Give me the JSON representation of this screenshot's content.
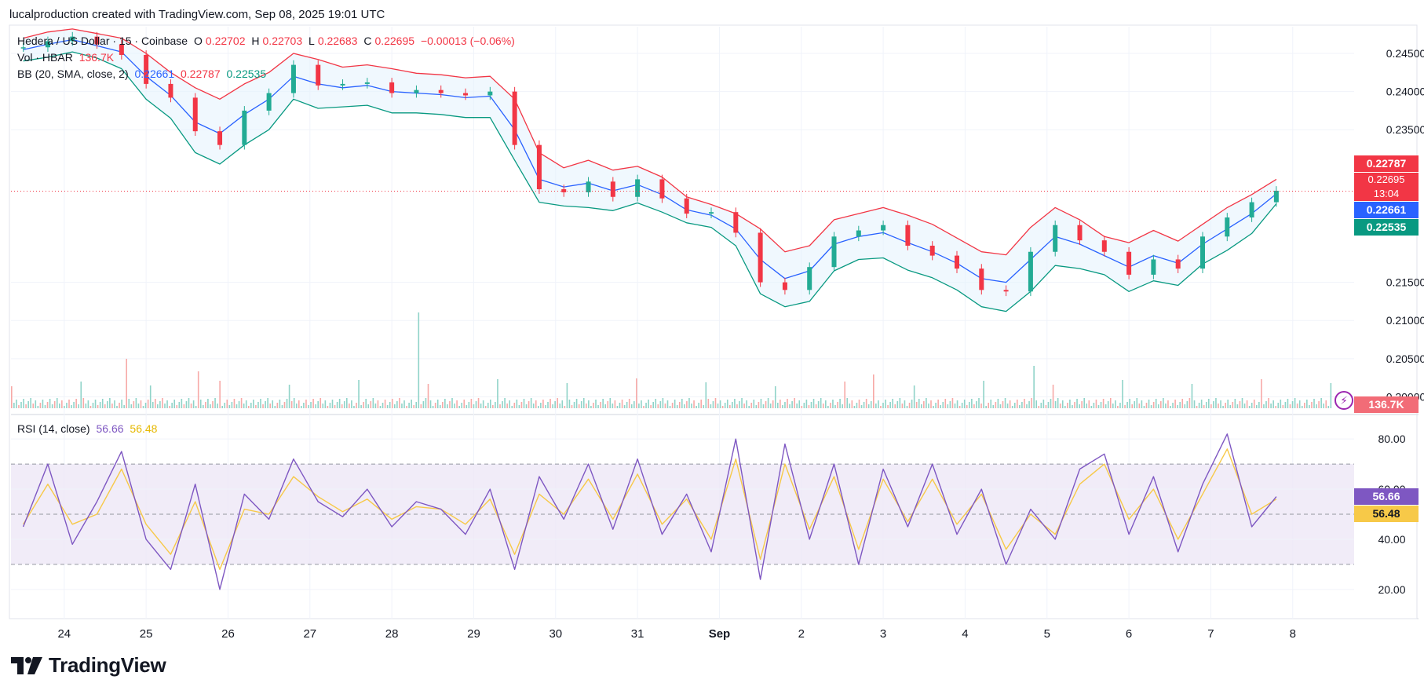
{
  "credit": "lucalproduction created with TradingView.com, Sep 08, 2025 19:01 UTC",
  "symbol": {
    "title": "Hedera / US Dollar · 15 · Coinbase",
    "open_label": "O",
    "open": "0.22702",
    "high_label": "H",
    "high": "0.22703",
    "low_label": "L",
    "low": "0.22683",
    "close_label": "C",
    "close": "0.22695",
    "change": "−0.00013 (−0.06%)"
  },
  "volume": {
    "label": "Vol · HBAR",
    "value": "136.7K"
  },
  "bb": {
    "label": "BB (20, SMA, close, 2)",
    "basis": "0.22661",
    "upper": "0.22787",
    "lower": "0.22535"
  },
  "rsi": {
    "label": "RSI (14, close)",
    "value": "56.66",
    "ma": "56.48"
  },
  "price_tags": {
    "upper": "0.22787",
    "close": "0.22695",
    "countdown": "13:04",
    "basis": "0.22661",
    "lower": "0.22535",
    "volume": "136.7K",
    "rsi": "56.66",
    "rsi_ma": "56.48"
  },
  "colors": {
    "up": "#22ab94",
    "down": "#f23645",
    "bb_upper": "#f23645",
    "bb_basis": "#2962ff",
    "bb_lower": "#089981",
    "rsi": "#7e57c2",
    "rsi_ma": "#f7c948",
    "rsi_band": "#ede7f6"
  },
  "logo_text": "TradingView",
  "chart_data": [
    {
      "type": "line",
      "title": "Hedera / US Dollar · 15 · Coinbase",
      "x_ticks": [
        "24",
        "25",
        "26",
        "27",
        "28",
        "29",
        "30",
        "31",
        "Sep",
        "2",
        "3",
        "4",
        "5",
        "6",
        "7",
        "8"
      ],
      "y_ticks": [
        "0.20000",
        "0.20500",
        "0.21000",
        "0.21500",
        "0.23500",
        "0.24000",
        "0.24500"
      ],
      "ylim": [
        0.1985,
        0.2485
      ],
      "grid": true,
      "series": [
        {
          "name": "BB upper",
          "x": [
            23.5,
            23.8,
            24.1,
            24.4,
            24.7,
            25.0,
            25.3,
            25.6,
            25.9,
            26.2,
            26.5,
            26.8,
            27.1,
            27.4,
            27.7,
            28.0,
            28.3,
            28.6,
            28.9,
            29.2,
            29.5,
            29.8,
            30.1,
            30.4,
            30.7,
            31.0,
            31.3,
            31.6,
            31.9,
            32.2,
            32.5,
            32.8,
            33.1,
            33.4,
            33.7,
            34.0,
            34.3,
            34.6,
            34.9,
            35.2,
            35.5,
            35.8,
            36.1,
            36.4,
            36.7,
            37.0,
            37.3,
            37.6,
            37.9,
            38.2,
            38.5,
            38.8
          ],
          "y": [
            0.247,
            0.2478,
            0.2482,
            0.2476,
            0.247,
            0.245,
            0.2425,
            0.2405,
            0.239,
            0.241,
            0.2425,
            0.245,
            0.2442,
            0.2432,
            0.2435,
            0.243,
            0.2424,
            0.2422,
            0.2418,
            0.242,
            0.239,
            0.232,
            0.23,
            0.231,
            0.2297,
            0.2302,
            0.2288,
            0.2262,
            0.2252,
            0.224,
            0.222,
            0.219,
            0.2198,
            0.2232,
            0.224,
            0.2248,
            0.2238,
            0.2226,
            0.2208,
            0.219,
            0.2186,
            0.2222,
            0.2248,
            0.2232,
            0.221,
            0.2202,
            0.2218,
            0.2204,
            0.2226,
            0.2248,
            0.2265,
            0.2285
          ]
        },
        {
          "name": "BB basis",
          "x": [
            23.5,
            23.8,
            24.1,
            24.4,
            24.7,
            25.0,
            25.3,
            25.6,
            25.9,
            26.2,
            26.5,
            26.8,
            27.1,
            27.4,
            27.7,
            28.0,
            28.3,
            28.6,
            28.9,
            29.2,
            29.5,
            29.8,
            30.1,
            30.4,
            30.7,
            31.0,
            31.3,
            31.6,
            31.9,
            32.2,
            32.5,
            32.8,
            33.1,
            33.4,
            33.7,
            34.0,
            34.3,
            34.6,
            34.9,
            35.2,
            35.5,
            35.8,
            36.1,
            36.4,
            36.7,
            37.0,
            37.3,
            37.6,
            37.9,
            38.2,
            38.5,
            38.8
          ],
          "y": [
            0.2455,
            0.2462,
            0.2468,
            0.246,
            0.2452,
            0.242,
            0.2395,
            0.236,
            0.2345,
            0.237,
            0.239,
            0.242,
            0.241,
            0.2405,
            0.2408,
            0.24,
            0.2398,
            0.2396,
            0.2392,
            0.2394,
            0.235,
            0.2285,
            0.2275,
            0.228,
            0.227,
            0.2278,
            0.2265,
            0.2245,
            0.2238,
            0.222,
            0.218,
            0.2155,
            0.2165,
            0.22,
            0.221,
            0.2215,
            0.2202,
            0.219,
            0.2175,
            0.2155,
            0.215,
            0.218,
            0.221,
            0.22,
            0.2185,
            0.217,
            0.2185,
            0.2175,
            0.22,
            0.222,
            0.224,
            0.2266
          ]
        },
        {
          "name": "BB lower",
          "x": [
            23.5,
            23.8,
            24.1,
            24.4,
            24.7,
            25.0,
            25.3,
            25.6,
            25.9,
            26.2,
            26.5,
            26.8,
            27.1,
            27.4,
            27.7,
            28.0,
            28.3,
            28.6,
            28.9,
            29.2,
            29.5,
            29.8,
            30.1,
            30.4,
            30.7,
            31.0,
            31.3,
            31.6,
            31.9,
            32.2,
            32.5,
            32.8,
            33.1,
            33.4,
            33.7,
            34.0,
            34.3,
            34.6,
            34.9,
            35.2,
            35.5,
            35.8,
            36.1,
            36.4,
            36.7,
            37.0,
            37.3,
            37.6,
            37.9,
            38.2,
            38.5,
            38.8
          ],
          "y": [
            0.244,
            0.2445,
            0.2452,
            0.2444,
            0.243,
            0.239,
            0.2365,
            0.232,
            0.2305,
            0.233,
            0.235,
            0.239,
            0.2378,
            0.238,
            0.2382,
            0.2372,
            0.2372,
            0.237,
            0.2366,
            0.2366,
            0.231,
            0.2255,
            0.225,
            0.2248,
            0.2244,
            0.2254,
            0.2242,
            0.2228,
            0.2222,
            0.2198,
            0.2135,
            0.2118,
            0.2125,
            0.2165,
            0.218,
            0.2182,
            0.2166,
            0.2156,
            0.214,
            0.2118,
            0.2112,
            0.2138,
            0.2172,
            0.2168,
            0.216,
            0.2138,
            0.2152,
            0.2146,
            0.2174,
            0.2192,
            0.2214,
            0.2253
          ]
        },
        {
          "name": "Close",
          "x": [
            23.5,
            23.8,
            24.1,
            24.4,
            24.7,
            25.0,
            25.3,
            25.6,
            25.9,
            26.2,
            26.5,
            26.8,
            27.1,
            27.4,
            27.7,
            28.0,
            28.3,
            28.6,
            28.9,
            29.2,
            29.5,
            29.8,
            30.1,
            30.4,
            30.7,
            31.0,
            31.3,
            31.6,
            31.9,
            32.2,
            32.5,
            32.8,
            33.1,
            33.4,
            33.7,
            34.0,
            34.3,
            34.6,
            34.9,
            35.2,
            35.5,
            35.8,
            36.1,
            36.4,
            36.7,
            37.0,
            37.3,
            37.6,
            37.9,
            38.2,
            38.5,
            38.8
          ],
          "y": [
            0.2458,
            0.2466,
            0.2472,
            0.2462,
            0.2448,
            0.241,
            0.2392,
            0.2348,
            0.233,
            0.2375,
            0.2398,
            0.2435,
            0.2408,
            0.241,
            0.2412,
            0.2398,
            0.2402,
            0.2398,
            0.2395,
            0.24,
            0.233,
            0.2272,
            0.2268,
            0.2282,
            0.2262,
            0.2285,
            0.226,
            0.224,
            0.2242,
            0.2215,
            0.215,
            0.214,
            0.217,
            0.221,
            0.2218,
            0.2225,
            0.2198,
            0.2185,
            0.2168,
            0.214,
            0.2138,
            0.219,
            0.2225,
            0.2205,
            0.219,
            0.216,
            0.218,
            0.2168,
            0.221,
            0.2235,
            0.2255,
            0.227
          ]
        }
      ]
    },
    {
      "type": "line",
      "title": "RSI (14, close)",
      "x_ticks": [
        "24",
        "25",
        "26",
        "27",
        "28",
        "29",
        "30",
        "31",
        "Sep",
        "2",
        "3",
        "4",
        "5",
        "6",
        "7",
        "8"
      ],
      "y_ticks": [
        "20.00",
        "40.00",
        "60.00",
        "80.00"
      ],
      "ylim": [
        14,
        86
      ],
      "bands": [
        30,
        50,
        70
      ],
      "series": [
        {
          "name": "RSI",
          "x": [
            23.5,
            23.8,
            24.1,
            24.4,
            24.7,
            25.0,
            25.3,
            25.6,
            25.9,
            26.2,
            26.5,
            26.8,
            27.1,
            27.4,
            27.7,
            28.0,
            28.3,
            28.6,
            28.9,
            29.2,
            29.5,
            29.8,
            30.1,
            30.4,
            30.7,
            31.0,
            31.3,
            31.6,
            31.9,
            32.2,
            32.5,
            32.8,
            33.1,
            33.4,
            33.7,
            34.0,
            34.3,
            34.6,
            34.9,
            35.2,
            35.5,
            35.8,
            36.1,
            36.4,
            36.7,
            37.0,
            37.3,
            37.6,
            37.9,
            38.2,
            38.5,
            38.8
          ],
          "y": [
            45,
            70,
            38,
            55,
            75,
            40,
            28,
            62,
            20,
            58,
            48,
            72,
            55,
            49,
            60,
            45,
            55,
            52,
            42,
            60,
            28,
            65,
            48,
            70,
            44,
            72,
            42,
            58,
            35,
            80,
            24,
            78,
            40,
            70,
            30,
            68,
            45,
            70,
            42,
            60,
            30,
            52,
            40,
            68,
            74,
            42,
            65,
            35,
            62,
            82,
            45,
            57
          ]
        },
        {
          "name": "RSI MA",
          "x": [
            23.5,
            23.8,
            24.1,
            24.4,
            24.7,
            25.0,
            25.3,
            25.6,
            25.9,
            26.2,
            26.5,
            26.8,
            27.1,
            27.4,
            27.7,
            28.0,
            28.3,
            28.6,
            28.9,
            29.2,
            29.5,
            29.8,
            30.1,
            30.4,
            30.7,
            31.0,
            31.3,
            31.6,
            31.9,
            32.2,
            32.5,
            32.8,
            33.1,
            33.4,
            33.7,
            34.0,
            34.3,
            34.6,
            34.9,
            35.2,
            35.5,
            35.8,
            36.1,
            36.4,
            36.7,
            37.0,
            37.3,
            37.6,
            37.9,
            38.2,
            38.5,
            38.8
          ],
          "y": [
            46,
            62,
            46,
            50,
            68,
            46,
            34,
            55,
            28,
            52,
            50,
            65,
            57,
            51,
            56,
            48,
            53,
            52,
            46,
            56,
            34,
            58,
            50,
            64,
            48,
            66,
            46,
            56,
            40,
            72,
            32,
            70,
            44,
            65,
            36,
            64,
            47,
            64,
            46,
            58,
            36,
            50,
            42,
            62,
            70,
            48,
            60,
            40,
            58,
            76,
            50,
            56
          ]
        }
      ]
    }
  ]
}
